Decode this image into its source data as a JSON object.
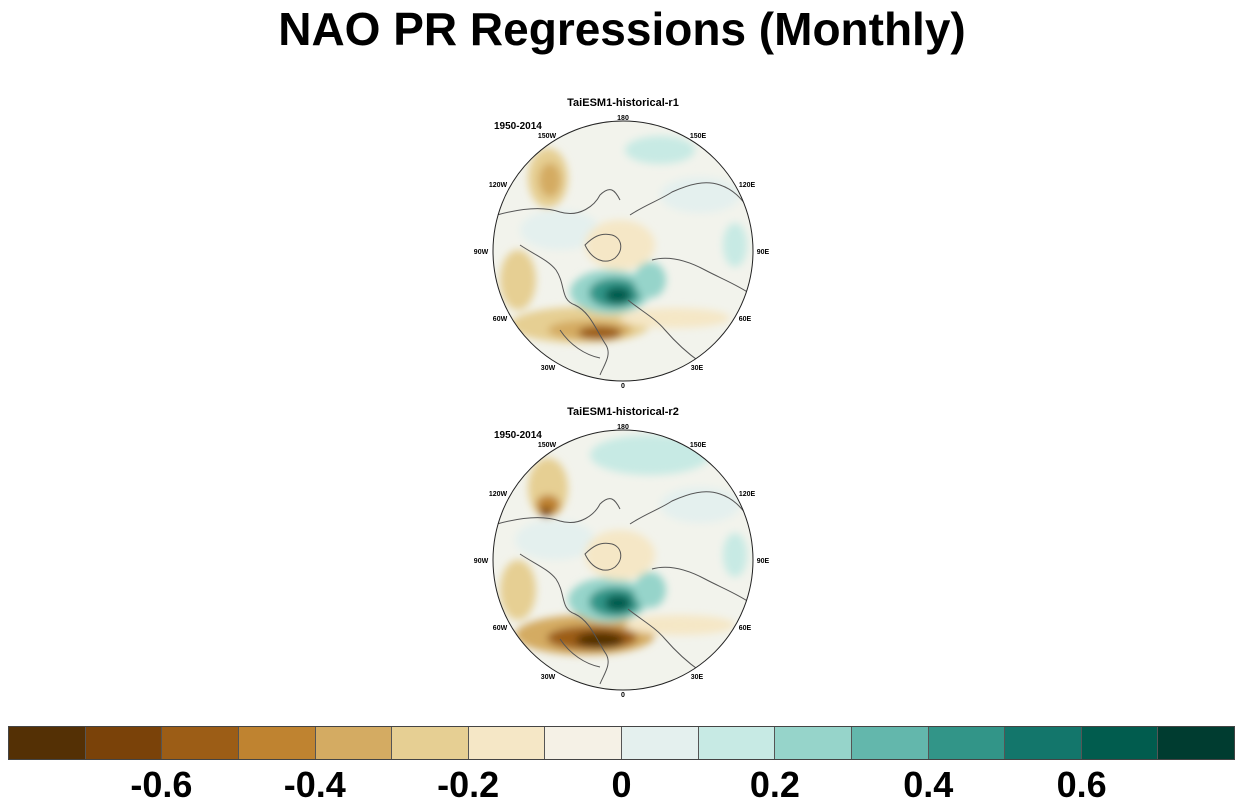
{
  "title": "NAO PR Regressions (Monthly)",
  "panels": [
    {
      "title": "TaiESM1-historical-r1",
      "period": "1950-2014",
      "lon_labels": [
        "180",
        "150E",
        "120E",
        "90E",
        "60E",
        "30E",
        "0",
        "30W",
        "60W",
        "90W",
        "120W",
        "150W"
      ]
    },
    {
      "title": "TaiESM1-historical-r2",
      "period": "1950-2014",
      "lon_labels": [
        "180",
        "150E",
        "120E",
        "90E",
        "60E",
        "30E",
        "0",
        "30W",
        "60W",
        "90W",
        "120W",
        "150W"
      ]
    }
  ],
  "colorbar": {
    "colors": [
      "#543005",
      "#7a4209",
      "#9c5d16",
      "#bf8330",
      "#d4ab62",
      "#e6cf93",
      "#f5e7c6",
      "#f5f1e6",
      "#e4f0ee",
      "#c7eae4",
      "#96d4ca",
      "#63b7ac",
      "#329588",
      "#13766b",
      "#015c4e",
      "#003c30"
    ],
    "tick_labels": [
      "-0.6",
      "-0.4",
      "-0.2",
      "0",
      "0.2",
      "0.4",
      "0.6"
    ],
    "tick_values": [
      -0.6,
      -0.4,
      -0.2,
      0,
      0.2,
      0.4,
      0.6
    ],
    "range": [
      -0.8,
      0.8
    ]
  }
}
